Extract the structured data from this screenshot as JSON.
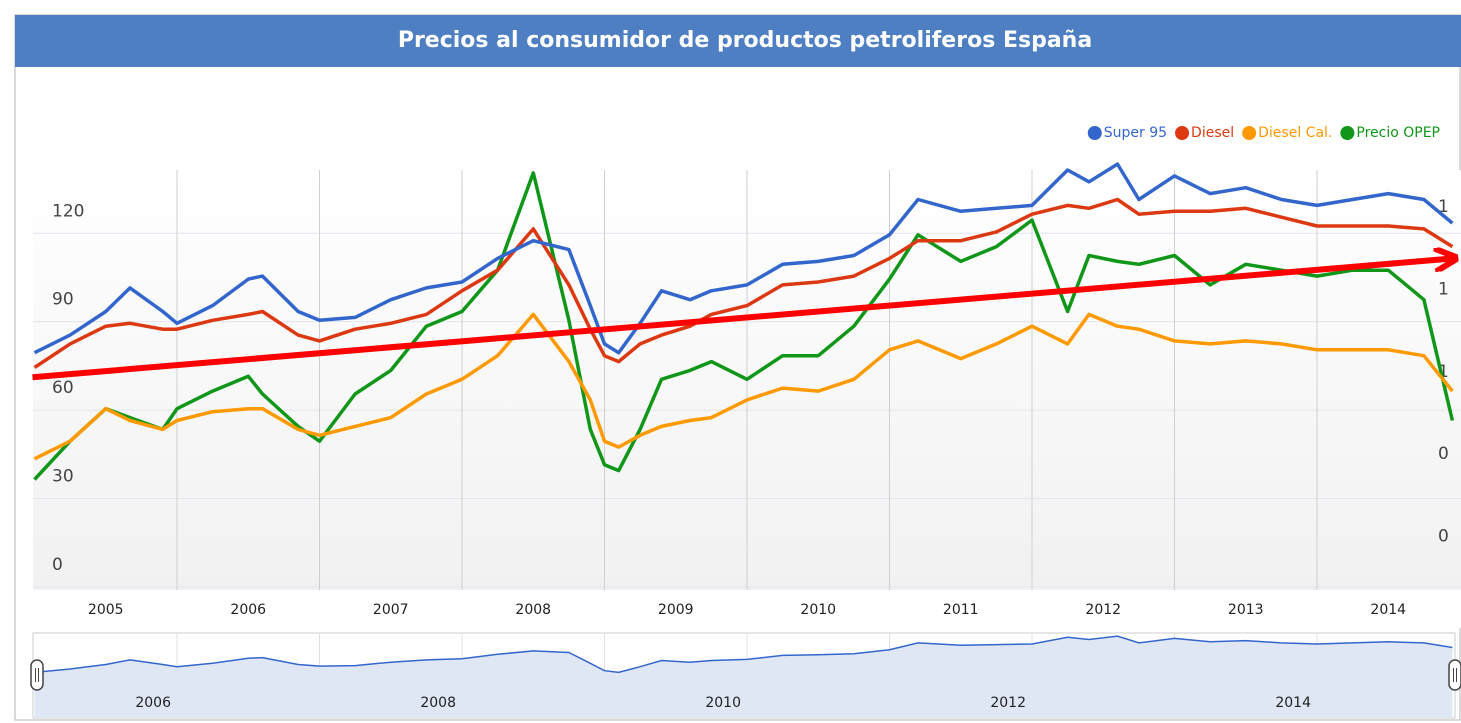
{
  "chart_data": {
    "type": "line",
    "title": "Precios al consumidor de productos petroliferos España",
    "x": [
      2005.0,
      2005.25,
      2005.5,
      2005.67,
      2005.9,
      2006.0,
      2006.25,
      2006.5,
      2006.6,
      2006.85,
      2007.0,
      2007.25,
      2007.5,
      2007.75,
      2008.0,
      2008.25,
      2008.5,
      2008.75,
      2008.9,
      2009.0,
      2009.1,
      2009.25,
      2009.4,
      2009.6,
      2009.75,
      2010.0,
      2010.25,
      2010.5,
      2010.75,
      2011.0,
      2011.2,
      2011.5,
      2011.75,
      2012.0,
      2012.25,
      2012.4,
      2012.6,
      2012.75,
      2013.0,
      2013.25,
      2013.5,
      2013.75,
      2014.0,
      2014.25,
      2014.5,
      2014.75,
      2014.95
    ],
    "series": [
      {
        "name": "Super 95",
        "color": "#3366cc",
        "values": [
          72,
          78,
          86,
          94,
          86,
          82,
          88,
          97,
          98,
          86,
          83,
          84,
          90,
          94,
          96,
          104,
          110,
          107,
          88,
          75,
          72,
          82,
          93,
          90,
          93,
          95,
          102,
          103,
          105,
          112,
          124,
          120,
          121,
          122,
          134,
          130,
          136,
          124,
          132,
          126,
          128,
          124,
          122,
          124,
          126,
          124,
          116
        ]
      },
      {
        "name": "Diesel",
        "color": "#dc3912",
        "values": [
          67,
          75,
          81,
          82,
          80,
          80,
          83,
          85,
          86,
          78,
          76,
          80,
          82,
          85,
          93,
          100,
          114,
          95,
          80,
          71,
          69,
          75,
          78,
          81,
          85,
          88,
          95,
          96,
          98,
          104,
          110,
          110,
          113,
          119,
          122,
          121,
          124,
          119,
          120,
          120,
          121,
          118,
          115,
          115,
          115,
          114,
          108
        ]
      },
      {
        "name": "Diesel Cal.",
        "color": "#ff9900",
        "values": [
          36,
          42,
          53,
          49,
          46,
          49,
          52,
          53,
          53,
          46,
          44,
          47,
          50,
          58,
          63,
          71,
          85,
          69,
          56,
          42,
          40,
          44,
          47,
          49,
          50,
          56,
          60,
          59,
          63,
          73,
          76,
          70,
          75,
          81,
          75,
          85,
          81,
          80,
          76,
          75,
          76,
          75,
          73,
          73,
          73,
          71,
          59
        ]
      },
      {
        "name": "Precio OPEP",
        "color": "#109618",
        "values": [
          29,
          42,
          53,
          50,
          46,
          53,
          59,
          64,
          58,
          47,
          42,
          58,
          66,
          81,
          86,
          100,
          133,
          83,
          46,
          34,
          32,
          46,
          63,
          66,
          69,
          63,
          71,
          71,
          81,
          97,
          112,
          103,
          108,
          117,
          86,
          105,
          103,
          102,
          105,
          95,
          102,
          100,
          98,
          100,
          100,
          90,
          49
        ]
      }
    ],
    "xlim": [
      2005,
      2015
    ],
    "xticks": [
      {
        "value": 2005.5,
        "label": "2005"
      },
      {
        "value": 2006.5,
        "label": "2006"
      },
      {
        "value": 2007.5,
        "label": "2007"
      },
      {
        "value": 2008.5,
        "label": "2008"
      },
      {
        "value": 2009.5,
        "label": "2009"
      },
      {
        "value": 2010.5,
        "label": "2010"
      },
      {
        "value": 2011.5,
        "label": "2011"
      },
      {
        "value": 2012.5,
        "label": "2012"
      },
      {
        "value": 2013.5,
        "label": "2013"
      },
      {
        "value": 2014.5,
        "label": "2014"
      }
    ],
    "xgrid": [
      2006,
      2007,
      2008,
      2009,
      2010,
      2011,
      2012,
      2013,
      2014
    ],
    "ylim": [
      -8.5,
      134
    ],
    "yticks": [
      0,
      30,
      60,
      90,
      120
    ],
    "y2lim": [
      0.27,
      1.29
    ],
    "y2ticks": [
      {
        "value": 1.2,
        "label": "1"
      },
      {
        "value": 1.0,
        "label": "1"
      },
      {
        "value": 0.8,
        "label": "1"
      },
      {
        "value": 0.6,
        "label": "0"
      },
      {
        "value": 0.4,
        "label": "0"
      }
    ],
    "navigator_ticks": [
      2006,
      2008,
      2010,
      2012,
      2014
    ],
    "legend": "top-right",
    "trend_line": {
      "color": "#ff0000",
      "x": [
        2005,
        2015
      ],
      "y": [
        63.7,
        104
      ]
    }
  }
}
